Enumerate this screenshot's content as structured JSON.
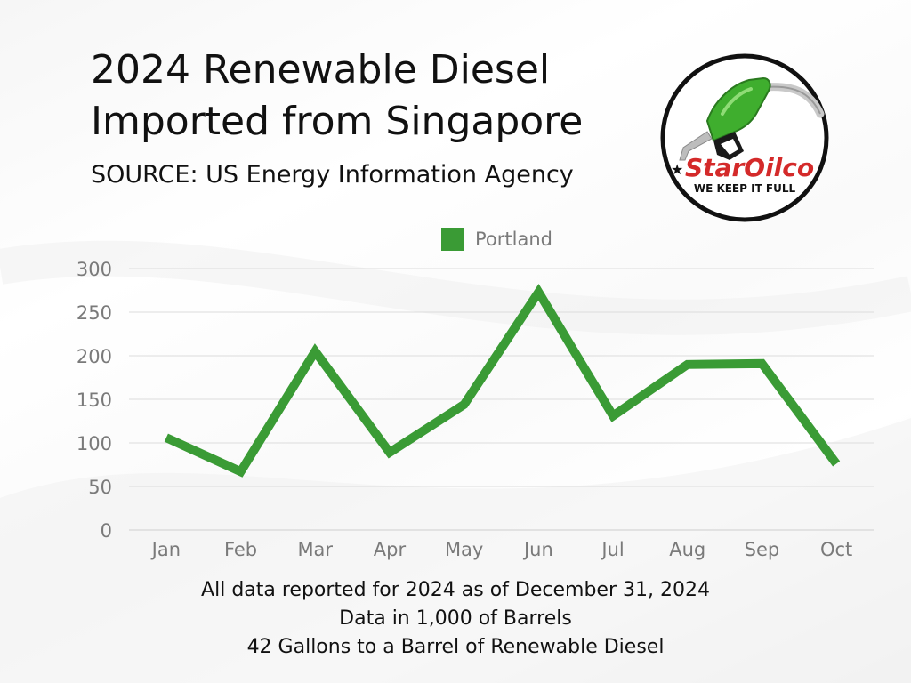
{
  "header": {
    "title_line1": "2024 Renewable Diesel",
    "title_line2": "Imported from Singapore",
    "subtitle": "SOURCE: US Energy Information Agency"
  },
  "logo": {
    "brand_star": "★",
    "brand_name_star": "Star",
    "brand_name_oilco": "Oilco",
    "tagline": "WE KEEP IT FULL"
  },
  "colors": {
    "series": "#3a9b35",
    "grid": "#dcdcdc",
    "tick_text": "#7a7a7a",
    "logo_red": "#d42a2a"
  },
  "chart_data": {
    "type": "line",
    "categories": [
      "Jan",
      "Feb",
      "Mar",
      "Apr",
      "May",
      "Jun",
      "Jul",
      "Aug",
      "Sep",
      "Oct"
    ],
    "series": [
      {
        "name": "Portland",
        "values": [
          106,
          67,
          205,
          89,
          144,
          273,
          131,
          190,
          191,
          76
        ]
      }
    ],
    "ylim": [
      0,
      300
    ],
    "yticks": [
      "0",
      "50",
      "100",
      "150",
      "200",
      "250",
      "300"
    ],
    "grid": true,
    "legend": "top-center"
  },
  "footnotes": [
    "All data reported for 2024 as of December 31, 2024",
    "Data in 1,000 of Barrels",
    "42 Gallons to a Barrel of Renewable Diesel"
  ]
}
